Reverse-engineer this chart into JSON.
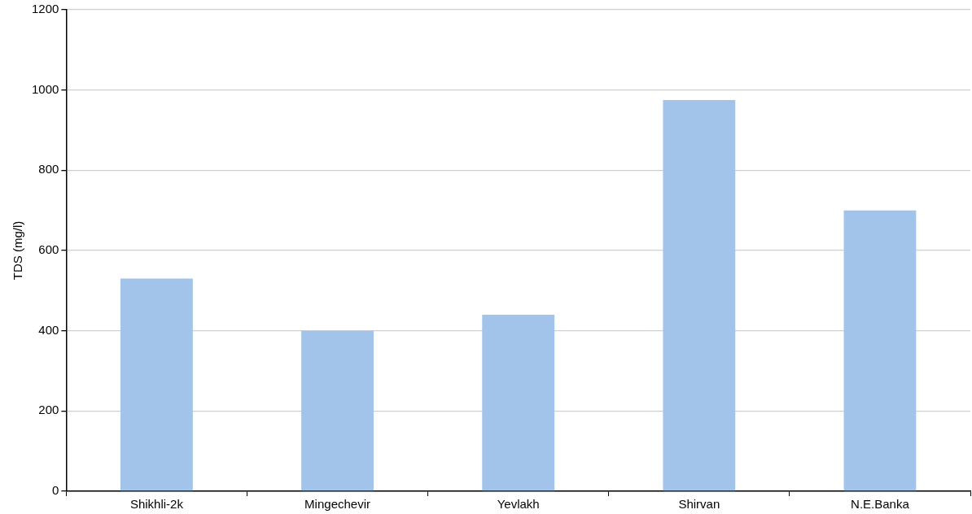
{
  "chart_data": {
    "type": "bar",
    "ylabel": "TDS (mg/l)",
    "categories": [
      "Shikhli-2k",
      "Mingechevir",
      "Yevlakh",
      "Shirvan",
      "N.E.Banka"
    ],
    "values": [
      530,
      400,
      440,
      975,
      700
    ],
    "color": "#a3c4ea",
    "ylim": [
      0,
      1200
    ],
    "yticks": [
      0,
      200,
      400,
      600,
      800,
      1000,
      1200
    ],
    "grid": "y",
    "legend": false
  }
}
